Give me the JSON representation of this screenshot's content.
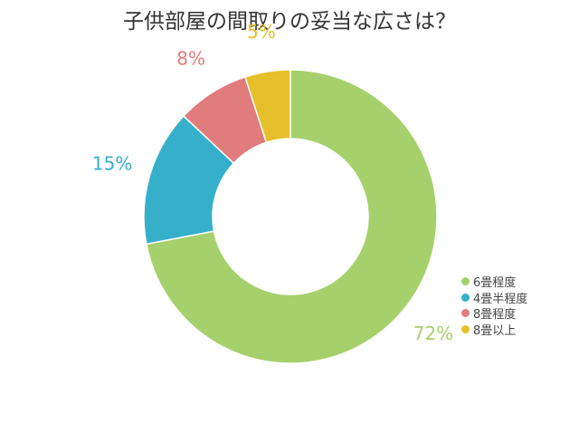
{
  "chart_data": {
    "type": "pie",
    "title": "子供部屋の間取りの妥当な広さは？",
    "categories": [
      "6畳程度",
      "4畳半程度",
      "8畳程度",
      "8畳以上"
    ],
    "values": [
      72,
      15,
      8,
      5
    ],
    "data_labels": [
      "72%",
      "15%",
      "8%",
      "5%"
    ],
    "colors": [
      "#a6d06b",
      "#35afca",
      "#e17c7c",
      "#e6c02a"
    ],
    "donut": true,
    "legend_position": "bottom-right"
  }
}
